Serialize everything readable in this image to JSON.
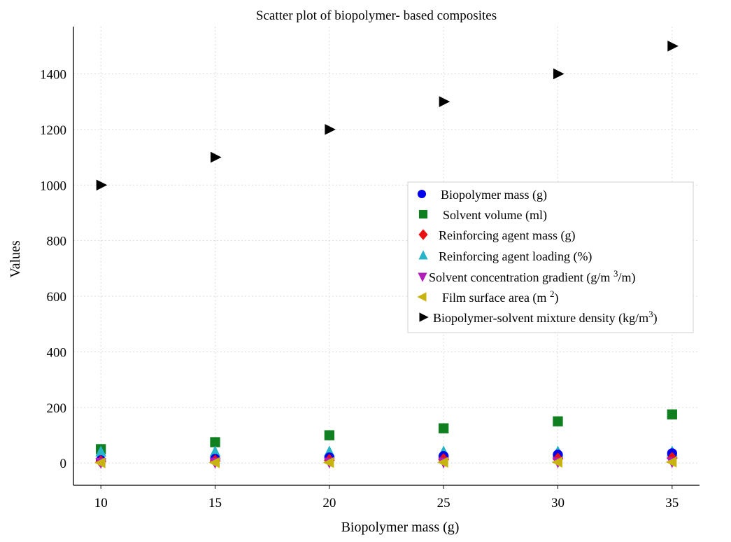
{
  "chart_data": {
    "type": "scatter",
    "title": "Scatter plot of biopolymer- based composites",
    "xlabel": "Biopolymer mass (g)",
    "ylabel": "Values",
    "xlim": [
      8.8,
      36.2
    ],
    "ylim": [
      -80,
      1570
    ],
    "xticks": [
      10,
      15,
      20,
      25,
      30,
      35
    ],
    "yticks": [
      0,
      200,
      400,
      600,
      800,
      1000,
      1200,
      1400
    ],
    "grid": true,
    "legend_position": "center-right",
    "x": [
      10,
      15,
      20,
      25,
      30,
      35
    ],
    "series": [
      {
        "key": "s1",
        "name": "Biopolymer mass (g)",
        "marker": "circle",
        "color": "#0000ee",
        "values": [
          10,
          15,
          20,
          25,
          30,
          35
        ]
      },
      {
        "key": "s2",
        "name": "Solvent volume (ml)",
        "marker": "square",
        "color": "#0f7f1f",
        "values": [
          50,
          75,
          100,
          125,
          150,
          175
        ]
      },
      {
        "key": "s3",
        "name": "Reinforcing agent mass (g)",
        "marker": "diamond",
        "color": "#e81010",
        "values": [
          5,
          7.5,
          10,
          12.5,
          15,
          17.5
        ]
      },
      {
        "key": "s4",
        "name": "Reinforcing agent loading (%)",
        "marker": "triangle-up",
        "color": "#27b4c8",
        "values": [
          40,
          40,
          40,
          40,
          40,
          40
        ]
      },
      {
        "key": "s5",
        "name": "Solvent concentration gradient (g/m 3/m)",
        "marker": "triangle-down",
        "color": "#b020b8",
        "values": [
          2,
          2.5,
          3,
          3.5,
          4,
          4.5
        ]
      },
      {
        "key": "s6",
        "name": "Film surface area (m 2)",
        "marker": "triangle-left",
        "color": "#c8b410",
        "values": [
          1,
          1.5,
          2,
          2.5,
          3,
          3.5
        ]
      },
      {
        "key": "s7",
        "name": "Biopolymer-solvent mixture density (kg/m3)",
        "marker": "triangle-right",
        "color": "#000000",
        "values": [
          1000,
          1100,
          1200,
          1300,
          1400,
          1500
        ]
      }
    ]
  },
  "legend": {
    "items": [
      {
        "label": "Biopolymer mass (g)"
      },
      {
        "label": "Solvent volume (ml)"
      },
      {
        "label": "Reinforcing agent mass (g)"
      },
      {
        "label": "Reinforcing agent loading (%)"
      },
      {
        "label": "Solvent concentration gradient (g/m ",
        "sup": "3",
        "tail": "/m)"
      },
      {
        "label": "Film surface area (m ",
        "sup": "2",
        "tail": ")"
      },
      {
        "label": "Biopolymer-solvent mixture density (kg/m",
        "sup": "3",
        "tail": ")"
      }
    ]
  }
}
